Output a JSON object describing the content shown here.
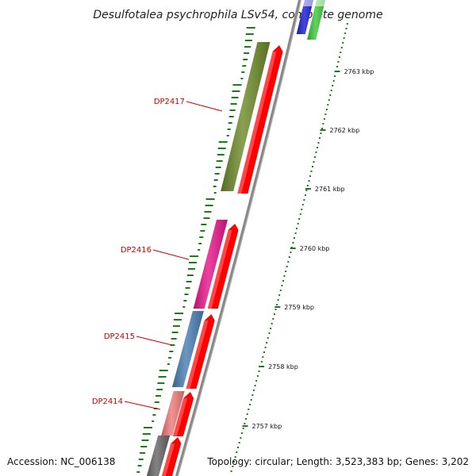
{
  "title": "Desulfotalea psychrophila LSv54, complete genome",
  "genes": [
    {
      "id": "g-top-blue",
      "label": "",
      "color": "#1b1bd6"
    },
    {
      "id": "g-top-green",
      "label": "",
      "color": "#3cc83c"
    },
    {
      "id": "DP2417",
      "label": "DP2417",
      "color": "#6e8b2a"
    },
    {
      "id": "DP2416",
      "label": "DP2416",
      "color": "#e8168c"
    },
    {
      "id": "DP2415",
      "label": "DP2415",
      "color": "#4a7fb5"
    },
    {
      "id": "DP2414",
      "label": "DP2414",
      "color": "#ee7b7b"
    },
    {
      "id": "g-bottom-gray",
      "label": "",
      "color": "#666666"
    }
  ],
  "cds_color": "#ff0000",
  "backbone_color": "#888888",
  "ticks": [
    "2763 kbp",
    "2762 kbp",
    "2761 kbp",
    "2760 kbp",
    "2759 kbp",
    "2758 kbp",
    "2757 kbp"
  ],
  "footer": {
    "accession": "Accession: NC_006138",
    "stats": "Topology: circular; Length: 3,523,383 bp; Genes: 3,202"
  }
}
